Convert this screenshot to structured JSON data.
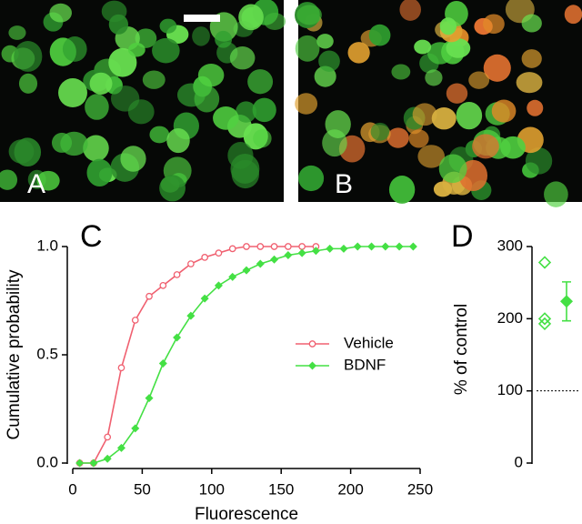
{
  "images": [
    {
      "label": "A"
    },
    {
      "label": "B"
    }
  ],
  "chart_data": [
    {
      "type": "line",
      "panel": "C",
      "x_label": "Fluorescence",
      "y_label": "Cumulative probability",
      "xlim": [
        0,
        250
      ],
      "xticks": [
        0,
        50,
        100,
        150,
        200,
        250
      ],
      "ylim": [
        0,
        1
      ],
      "yticks": [
        {
          "value": 0,
          "label": "0.0"
        },
        {
          "value": 0.5,
          "label": "0.5"
        },
        {
          "value": 1,
          "label": "1.0"
        }
      ],
      "series": [
        {
          "name": "Vehicle",
          "color": "#f06070",
          "marker": "open-circle",
          "x": [
            5,
            15,
            25,
            35,
            45,
            55,
            65,
            75,
            85,
            95,
            105,
            115,
            125,
            135,
            145,
            155,
            165,
            175
          ],
          "values": [
            0,
            0,
            0.12,
            0.44,
            0.66,
            0.77,
            0.82,
            0.87,
            0.92,
            0.95,
            0.97,
            0.99,
            1,
            1,
            1,
            1,
            1,
            1
          ]
        },
        {
          "name": "BDNF",
          "color": "#44e044",
          "marker": "filled-diamond",
          "x": [
            5,
            15,
            25,
            35,
            45,
            55,
            65,
            75,
            85,
            95,
            105,
            115,
            125,
            135,
            145,
            155,
            165,
            175,
            185,
            195,
            205,
            215,
            225,
            235,
            245
          ],
          "values": [
            0,
            0,
            0.02,
            0.07,
            0.16,
            0.3,
            0.46,
            0.58,
            0.68,
            0.76,
            0.82,
            0.86,
            0.89,
            0.92,
            0.94,
            0.96,
            0.97,
            0.98,
            0.99,
            0.99,
            1,
            1,
            1,
            1,
            1
          ]
        }
      ],
      "legend": "center-right"
    },
    {
      "type": "scatter",
      "panel": "D",
      "y_label": "% of control",
      "ylim": [
        0,
        300
      ],
      "yticks": [
        0,
        100,
        200,
        300
      ],
      "reference_line": 100,
      "color": "#44e044",
      "values": [
        278,
        200,
        193
      ],
      "mean": 224,
      "error": 27
    }
  ]
}
